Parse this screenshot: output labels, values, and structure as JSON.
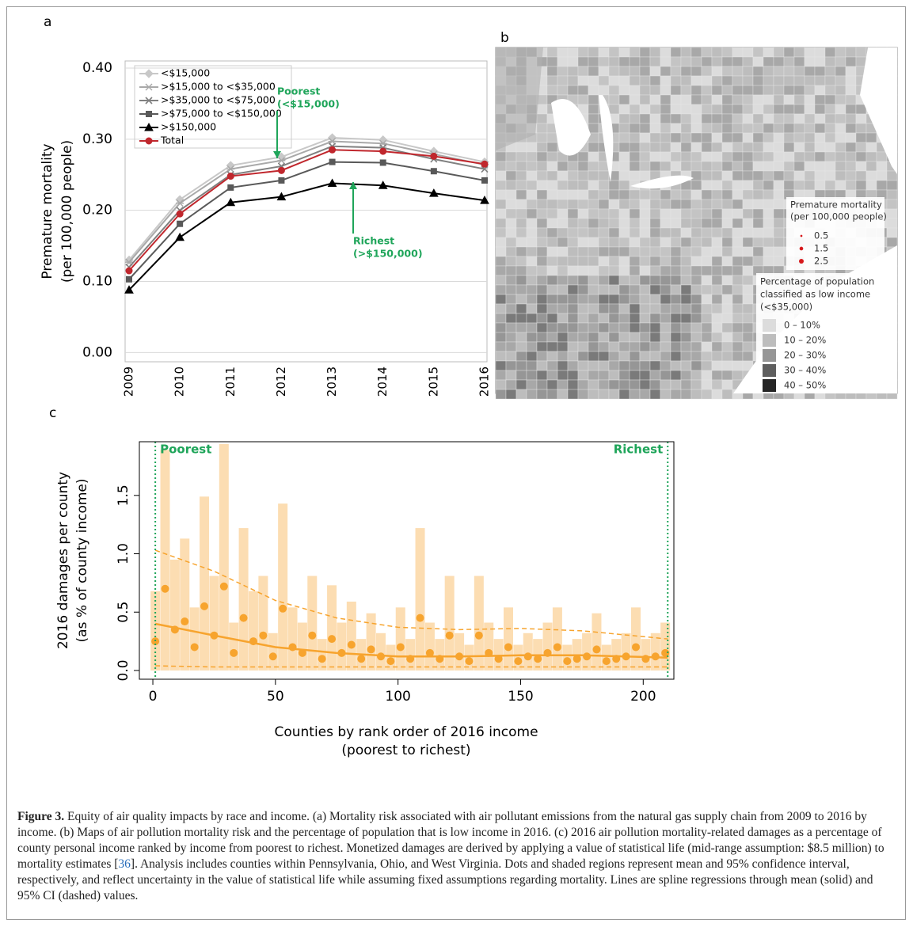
{
  "chart_data": [
    {
      "type": "line",
      "panel": "a",
      "ylabel": [
        "Premature mortality",
        "(per 100,000 people)"
      ],
      "categories": [
        "2009",
        "2010",
        "2011",
        "2012",
        "2013",
        "2014",
        "2015",
        "2016"
      ],
      "ylim": [
        -0.013,
        0.41
      ],
      "yticks": [
        {
          "value": 0,
          "label": "0.00"
        },
        {
          "value": 0.1,
          "label": "0.10"
        },
        {
          "value": 0.2,
          "label": "0.20"
        },
        {
          "value": 0.3,
          "label": "0.30"
        },
        {
          "value": 0.4,
          "label": "0.40"
        }
      ],
      "grid": true,
      "series": [
        {
          "name": "<$15,000",
          "color": "#c8c8c8",
          "marker": "diamond",
          "values": [
            0.13,
            0.215,
            0.263,
            0.275,
            0.302,
            0.299,
            0.283,
            0.268
          ]
        },
        {
          "name": ">$15,000 to <$35,000",
          "color": "#a9a9a9",
          "marker": "star",
          "values": [
            0.127,
            0.21,
            0.258,
            0.27,
            0.297,
            0.294,
            0.279,
            0.264
          ]
        },
        {
          "name": ">$35,000 to <$75,000",
          "color": "#808080",
          "marker": "x",
          "values": [
            0.12,
            0.2,
            0.25,
            0.262,
            0.29,
            0.288,
            0.272,
            0.258
          ]
        },
        {
          "name": ">$75,000 to <$150,000",
          "color": "#595959",
          "marker": "square",
          "values": [
            0.103,
            0.181,
            0.232,
            0.242,
            0.268,
            0.267,
            0.255,
            0.242
          ]
        },
        {
          "name": ">$150,000",
          "color": "#000000",
          "marker": "triangle",
          "values": [
            0.088,
            0.162,
            0.211,
            0.219,
            0.238,
            0.235,
            0.224,
            0.214
          ]
        },
        {
          "name": "Total",
          "color": "#c0272d",
          "marker": "circle",
          "values": [
            0.115,
            0.195,
            0.248,
            0.256,
            0.285,
            0.283,
            0.276,
            0.265
          ]
        }
      ],
      "annotations": [
        {
          "text": [
            "Poorest",
            "(<$15,000)"
          ],
          "color": "#1fa55a"
        },
        {
          "text": [
            "Richest",
            "(>$150,000)"
          ],
          "color": "#1fa55a"
        }
      ]
    },
    {
      "type": "map",
      "panel": "b",
      "size_legend": {
        "title": [
          "Premature mortality",
          "(per 100,000 people)"
        ],
        "color": "#d7191c",
        "values": [
          0.5,
          1.5,
          2.5
        ]
      },
      "fill_legend": {
        "title": [
          "Percentage of population",
          "classified as low income",
          "(<$35,000)"
        ],
        "labels": [
          "0 – 10%",
          "10 – 20%",
          "20 – 30%",
          "30 – 40%",
          "40 – 50%"
        ],
        "colors": [
          "#dcdcdc",
          "#bdbdbd",
          "#969696",
          "#5f5f5f",
          "#252525"
        ]
      }
    },
    {
      "type": "scatter",
      "panel": "c",
      "ylabel": [
        "2016 damages per county",
        "(as % of county income)"
      ],
      "xlabel": [
        "Counties by rank order of 2016 income",
        "(poorest to richest)"
      ],
      "xlim": [
        -5.5,
        212.5
      ],
      "xticks": [
        0,
        50,
        100,
        150,
        200
      ],
      "ylim": [
        -0.075,
        1.96
      ],
      "yticks": [
        {
          "value": 0,
          "label": "0.0"
        },
        0.5,
        {
          "value": 1,
          "label": "1.0"
        },
        1.5
      ],
      "color": "#f7a42e",
      "ci_color": "#fcd7a4",
      "x": [
        1,
        5,
        9,
        13,
        17,
        21,
        25,
        29,
        33,
        37,
        41,
        45,
        49,
        53,
        57,
        61,
        65,
        69,
        73,
        77,
        81,
        85,
        89,
        93,
        97,
        101,
        105,
        109,
        113,
        117,
        121,
        125,
        129,
        133,
        137,
        141,
        145,
        149,
        153,
        157,
        161,
        165,
        169,
        173,
        177,
        181,
        185,
        189,
        193,
        197,
        201,
        205,
        209
      ],
      "values": [
        0.25,
        0.7,
        0.35,
        0.42,
        0.2,
        0.55,
        0.3,
        0.72,
        0.15,
        0.45,
        0.25,
        0.3,
        0.12,
        0.53,
        0.2,
        0.15,
        0.3,
        0.1,
        0.27,
        0.15,
        0.22,
        0.1,
        0.18,
        0.12,
        0.08,
        0.2,
        0.1,
        0.45,
        0.15,
        0.1,
        0.3,
        0.12,
        0.08,
        0.3,
        0.15,
        0.1,
        0.2,
        0.08,
        0.12,
        0.1,
        0.15,
        0.2,
        0.08,
        0.1,
        0.12,
        0.18,
        0.08,
        0.1,
        0.12,
        0.2,
        0.1,
        0.12,
        0.15
      ],
      "ci_high": [
        0.68,
        1.89,
        0.95,
        1.13,
        0.54,
        1.49,
        0.81,
        1.94,
        0.41,
        1.22,
        0.68,
        0.81,
        0.32,
        1.43,
        0.54,
        0.41,
        0.81,
        0.27,
        0.73,
        0.41,
        0.59,
        0.27,
        0.49,
        0.32,
        0.22,
        0.54,
        0.27,
        1.22,
        0.41,
        0.27,
        0.81,
        0.32,
        0.22,
        0.81,
        0.41,
        0.27,
        0.54,
        0.22,
        0.32,
        0.27,
        0.41,
        0.54,
        0.22,
        0.27,
        0.32,
        0.49,
        0.22,
        0.27,
        0.32,
        0.54,
        0.27,
        0.32,
        0.41
      ],
      "lines": [
        {
          "style": "solid",
          "x": [
            1,
            25,
            50,
            75,
            100,
            125,
            150,
            175,
            210
          ],
          "values": [
            0.4,
            0.3,
            0.2,
            0.15,
            0.12,
            0.12,
            0.13,
            0.13,
            0.11
          ]
        },
        {
          "style": "dashed",
          "x": [
            1,
            25,
            50,
            75,
            100,
            125,
            150,
            175,
            210
          ],
          "values": [
            1.03,
            0.85,
            0.6,
            0.45,
            0.37,
            0.35,
            0.36,
            0.34,
            0.27
          ]
        },
        {
          "style": "dashed",
          "x": [
            1,
            25,
            50,
            75,
            100,
            125,
            150,
            175,
            210
          ],
          "values": [
            0.04,
            0.03,
            0.03,
            0.03,
            0.03,
            0.03,
            0.03,
            0.03,
            0.03
          ]
        }
      ],
      "bounds": [
        {
          "x": 1,
          "label": "Poorest"
        },
        {
          "x": 210,
          "label": "Richest"
        }
      ],
      "bound_color": "#1fa55a"
    }
  ],
  "caption": {
    "label": "Figure 3.",
    "text1": " Equity of air quality impacts by race and income. (a) Mortality risk associated with air pollutant emissions from the natural gas supply chain from 2009 to 2016 by income. (b) Maps of air pollution mortality risk and the percentage of population that is low income in 2016. (c) 2016 air pollution mortality-related damages as a percentage of county personal income ranked by income from poorest to richest. Monetized damages are derived by applying a value of statistical life (mid-range assumption: $8.5 million) to mortality estimates [",
    "ref": "36",
    "text2": "]. Analysis includes counties within Pennsylvania, Ohio, and West Virginia. Dots and shaded regions represent mean and 95% confidence interval, respectively, and reflect uncertainty in the value of statistical life while assuming fixed assumptions regarding mortality. Lines are spline regressions through mean (solid) and 95% CI (dashed) values."
  }
}
